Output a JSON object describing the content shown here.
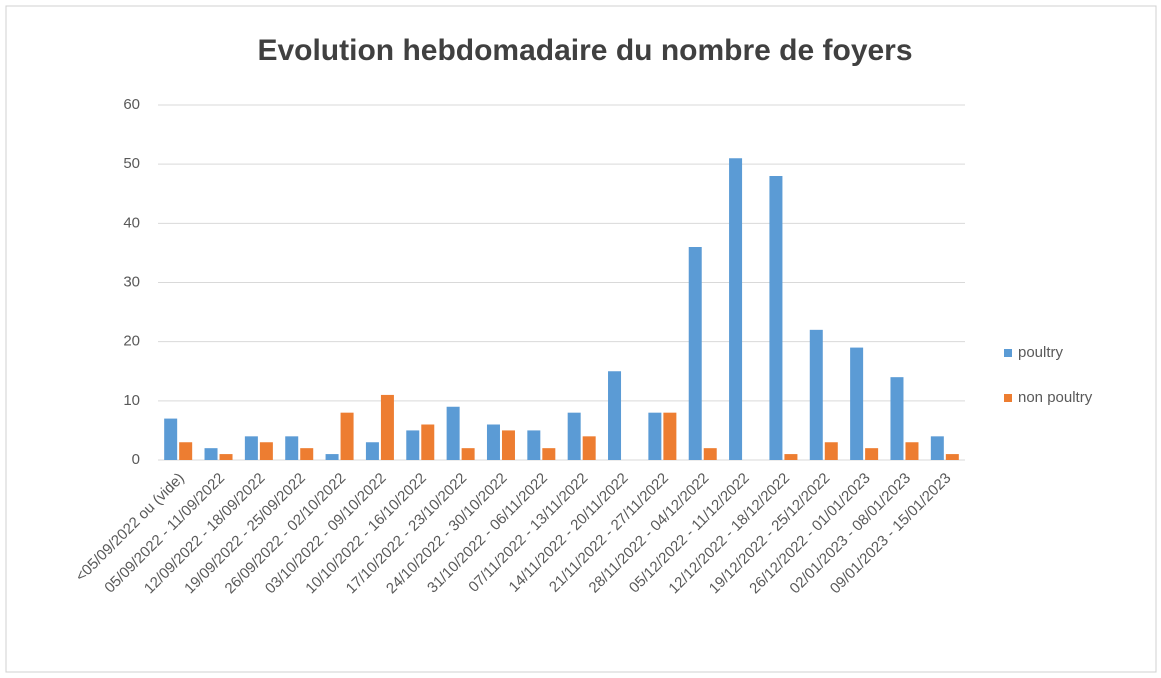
{
  "chart_data": {
    "type": "bar",
    "title": "Evolution hebdomadaire du nombre de foyers",
    "categories": [
      "<05/09/2022 ou (vide)",
      "05/09/2022 - 11/09/2022",
      "12/09/2022 - 18/09/2022",
      "19/09/2022 - 25/09/2022",
      "26/09/2022 - 02/10/2022",
      "03/10/2022 - 09/10/2022",
      "10/10/2022 - 16/10/2022",
      "17/10/2022 - 23/10/2022",
      "24/10/2022 - 30/10/2022",
      "31/10/2022 - 06/11/2022",
      "07/11/2022 - 13/11/2022",
      "14/11/2022 - 20/11/2022",
      "21/11/2022 - 27/11/2022",
      "28/11/2022 - 04/12/2022",
      "05/12/2022 - 11/12/2022",
      "12/12/2022 - 18/12/2022",
      "19/12/2022 - 25/12/2022",
      "26/12/2022 - 01/01/2023",
      "02/01/2023 - 08/01/2023",
      "09/01/2023 - 15/01/2023"
    ],
    "series": [
      {
        "name": "poultry",
        "color": "#5b9bd5",
        "values": [
          7,
          2,
          4,
          4,
          1,
          3,
          5,
          9,
          6,
          5,
          8,
          15,
          8,
          36,
          51,
          48,
          22,
          19,
          14,
          4
        ]
      },
      {
        "name": "non poultry",
        "color": "#ed7d31",
        "values": [
          3,
          1,
          3,
          2,
          8,
          11,
          6,
          2,
          5,
          2,
          4,
          0,
          8,
          2,
          0,
          1,
          3,
          2,
          3,
          1
        ]
      }
    ],
    "ylim": [
      0,
      60
    ],
    "yticks": [
      0,
      10,
      20,
      30,
      40,
      50,
      60
    ],
    "grid": true,
    "legend": "right"
  }
}
